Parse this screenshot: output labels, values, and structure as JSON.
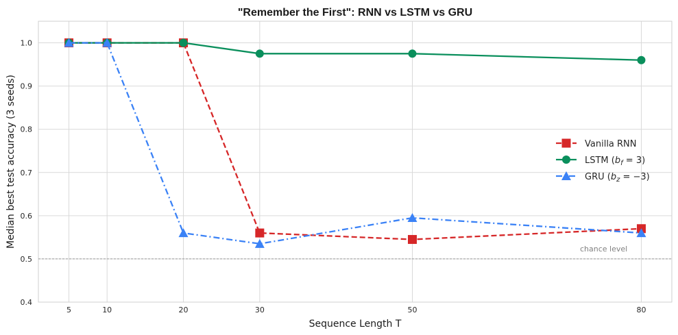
{
  "chart_data": {
    "type": "line",
    "title": "\"Remember the First\": RNN vs LSTM vs GRU",
    "xlabel": "Sequence Length T",
    "ylabel": "Median best test accuracy (3 seeds)",
    "x": [
      5,
      10,
      20,
      30,
      50,
      80
    ],
    "xticks": [
      "5",
      "10",
      "20",
      "30",
      "50",
      "80"
    ],
    "xlim": [
      1,
      84
    ],
    "ylim": [
      0.4,
      1.05
    ],
    "yticks": [
      "0.4",
      "0.5",
      "0.6",
      "0.7",
      "0.8",
      "0.9",
      "1.0"
    ],
    "grid": true,
    "legend_position": "right",
    "series": [
      {
        "name": "Vanilla RNN",
        "values": [
          1.0,
          1.0,
          1.0,
          0.56,
          0.545,
          0.57
        ],
        "color": "#d62728",
        "linestyle": "dashed",
        "marker": "square"
      },
      {
        "name": "LSTM (bf = 3)",
        "name_parts": [
          "LSTM (",
          "b",
          "f",
          " = 3)"
        ],
        "values": [
          1.0,
          1.0,
          1.0,
          0.975,
          0.975,
          0.96
        ],
        "color": "#0a8f5c",
        "linestyle": "solid",
        "marker": "circle"
      },
      {
        "name": "GRU (bz = −3)",
        "name_parts": [
          "GRU (",
          "b",
          "z",
          " = −3)"
        ],
        "values": [
          1.0,
          1.0,
          0.56,
          0.535,
          0.595,
          0.56
        ],
        "color": "#3b82f6",
        "linestyle": "dashdot",
        "marker": "triangle"
      }
    ],
    "reference_line": {
      "y": 0.5,
      "label": "chance level",
      "color": "#999999"
    }
  }
}
